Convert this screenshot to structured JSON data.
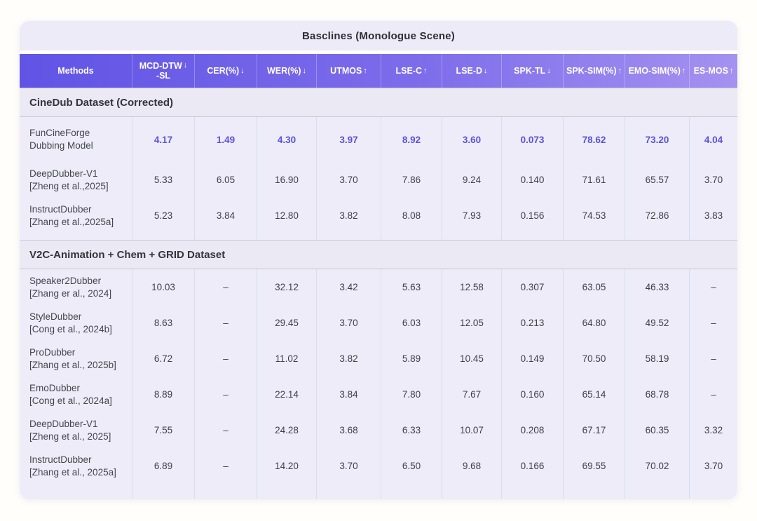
{
  "page_title": "Basclines (Monologue Scene)",
  "colors": {
    "page_background": "#fffefb",
    "card_background": "#edecf8",
    "title_bar_background": "#ecebf7",
    "header_gradient_start": "#6154e5",
    "header_gradient_end": "#a492f0",
    "header_text": "#ffffff",
    "section_header_background": "#eae9f4",
    "section_border": "#c9c7db",
    "cell_separator": "#dcdaeb",
    "body_text": "#3f3f4a",
    "highlight_value_text": "#5b50de"
  },
  "chart_data": {
    "type": "table",
    "title": "Basclines (Monologue Scene)",
    "columns": [
      {
        "id": "methods",
        "label": "Methods",
        "arrow": ""
      },
      {
        "id": "mcd-dtw-sl",
        "label": "MCD-DTW",
        "label2": "-SL",
        "arrow": "↓"
      },
      {
        "id": "cer",
        "label": "CER(%)",
        "arrow": "↓"
      },
      {
        "id": "wer",
        "label": "WER(%)",
        "arrow": "↓"
      },
      {
        "id": "utmos",
        "label": "UTMOS",
        "arrow": "↑"
      },
      {
        "id": "lse-c",
        "label": "LSE-C",
        "arrow": "↑"
      },
      {
        "id": "lse-d",
        "label": "LSE-D",
        "arrow": "↓"
      },
      {
        "id": "spk-tl",
        "label": "SPK-TL",
        "arrow": "↓"
      },
      {
        "id": "spk-sim",
        "label": "SPK-SIM(%)",
        "arrow": "↑"
      },
      {
        "id": "emo-sim",
        "label": "EMO-SIM(%)",
        "arrow": "↑"
      },
      {
        "id": "es-mos",
        "label": "ES-MOS",
        "arrow": "↑"
      }
    ],
    "sections": [
      {
        "header": "CineDub Dataset (Corrected)",
        "rows": [
          {
            "method": "FunCineForge",
            "citation": "Dubbing Model",
            "highlight": true,
            "values": [
              "4.17",
              "1.49",
              "4.30",
              "3.97",
              "8.92",
              "3.60",
              "0.073",
              "78.62",
              "73.20",
              "4.04"
            ]
          },
          {
            "method": "DeepDubber-V1",
            "citation": "[Zheng et al.,2025]",
            "highlight": false,
            "values": [
              "5.33",
              "6.05",
              "16.90",
              "3.70",
              "7.86",
              "9.24",
              "0.140",
              "71.61",
              "65.57",
              "3.70"
            ]
          },
          {
            "method": "InstructDubber",
            "citation": "[Zhang et al.,2025a]",
            "highlight": false,
            "values": [
              "5.23",
              "3.84",
              "12.80",
              "3.82",
              "8.08",
              "7.93",
              "0.156",
              "74.53",
              "72.86",
              "3.83"
            ]
          }
        ]
      },
      {
        "header": "V2C-Animation + Chem + GRID Dataset",
        "rows": [
          {
            "method": "Speaker2Dubber",
            "citation": "[Zhang er al., 2024]",
            "highlight": false,
            "values": [
              "10.03",
              "–",
              "32.12",
              "3.42",
              "5.63",
              "12.58",
              "0.307",
              "63.05",
              "46.33",
              "–"
            ]
          },
          {
            "method": "StyleDubber",
            "citation": "[Cong et al., 2024b]",
            "highlight": false,
            "values": [
              "8.63",
              "–",
              "29.45",
              "3.70",
              "6.03",
              "12.05",
              "0.213",
              "64.80",
              "49.52",
              "–"
            ]
          },
          {
            "method": "ProDubber",
            "citation": "[Zhang et al., 2025b]",
            "highlight": false,
            "values": [
              "6.72",
              "–",
              "11.02",
              "3.82",
              "5.89",
              "10.45",
              "0.149",
              "70.50",
              "58.19",
              "–"
            ]
          },
          {
            "method": "EmoDubber",
            "citation": "[Cong et al., 2024a]",
            "highlight": false,
            "values": [
              "8.89",
              "–",
              "22.14",
              "3.84",
              "7.80",
              "7.67",
              "0.160",
              "65.14",
              "68.78",
              "–"
            ]
          },
          {
            "method": "DeepDubber-V1",
            "citation": "[Zheng et al., 2025]",
            "highlight": false,
            "values": [
              "7.55",
              "–",
              "24.28",
              "3.68",
              "6.33",
              "10.07",
              "0.208",
              "67.17",
              "60.35",
              "3.32"
            ]
          },
          {
            "method": "InstructDubber",
            "citation": "[Zhang et al., 2025a]",
            "highlight": false,
            "values": [
              "6.89",
              "–",
              "14.20",
              "3.70",
              "6.50",
              "9.68",
              "0.166",
              "69.55",
              "70.02",
              "3.70"
            ]
          }
        ]
      }
    ]
  }
}
